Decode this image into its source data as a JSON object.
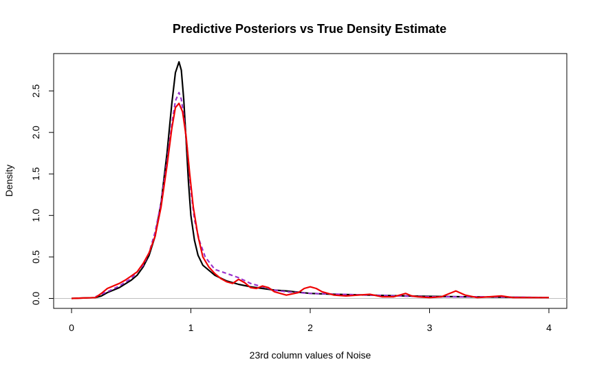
{
  "chart_data": {
    "type": "line",
    "title": "Predictive Posteriors vs True Density Estimate",
    "xlabel": "23rd column values of Noise",
    "ylabel": "Density",
    "xlim": [
      -0.15,
      4.15
    ],
    "ylim": [
      -0.12,
      2.95
    ],
    "xticks": [
      0,
      1,
      2,
      3,
      4
    ],
    "xtick_labels": [
      "0",
      "1",
      "2",
      "3",
      "4"
    ],
    "yticks": [
      0,
      0.5,
      1,
      1.5,
      2,
      2.5
    ],
    "ytick_labels": [
      "0.0",
      "0.5",
      "1.0",
      "1.5",
      "2.0",
      "2.5"
    ],
    "zero_line": true,
    "grid": false,
    "legend": "none",
    "series": [
      {
        "color": "#000000",
        "style": "solid",
        "points": [
          [
            0,
            0
          ],
          [
            0.1,
            0.005
          ],
          [
            0.2,
            0.01
          ],
          [
            0.25,
            0.03
          ],
          [
            0.3,
            0.07
          ],
          [
            0.4,
            0.13
          ],
          [
            0.5,
            0.22
          ],
          [
            0.55,
            0.28
          ],
          [
            0.6,
            0.38
          ],
          [
            0.65,
            0.52
          ],
          [
            0.7,
            0.75
          ],
          [
            0.75,
            1.15
          ],
          [
            0.8,
            1.75
          ],
          [
            0.84,
            2.35
          ],
          [
            0.87,
            2.72
          ],
          [
            0.9,
            2.85
          ],
          [
            0.92,
            2.75
          ],
          [
            0.94,
            2.4
          ],
          [
            0.96,
            1.9
          ],
          [
            0.98,
            1.4
          ],
          [
            1.0,
            1.0
          ],
          [
            1.03,
            0.7
          ],
          [
            1.06,
            0.52
          ],
          [
            1.1,
            0.4
          ],
          [
            1.2,
            0.28
          ],
          [
            1.3,
            0.21
          ],
          [
            1.4,
            0.17
          ],
          [
            1.5,
            0.14
          ],
          [
            1.6,
            0.12
          ],
          [
            1.7,
            0.1
          ],
          [
            1.8,
            0.09
          ],
          [
            2.0,
            0.06
          ],
          [
            2.2,
            0.05
          ],
          [
            2.5,
            0.04
          ],
          [
            2.8,
            0.03
          ],
          [
            3.0,
            0.025
          ],
          [
            3.3,
            0.02
          ],
          [
            3.6,
            0.015
          ],
          [
            4.0,
            0.01
          ]
        ]
      },
      {
        "color": "#9933cc",
        "style": "dashed",
        "points": [
          [
            0.2,
            0.02
          ],
          [
            0.3,
            0.08
          ],
          [
            0.4,
            0.15
          ],
          [
            0.5,
            0.24
          ],
          [
            0.6,
            0.4
          ],
          [
            0.65,
            0.55
          ],
          [
            0.7,
            0.8
          ],
          [
            0.75,
            1.15
          ],
          [
            0.8,
            1.65
          ],
          [
            0.84,
            2.1
          ],
          [
            0.87,
            2.38
          ],
          [
            0.9,
            2.48
          ],
          [
            0.92,
            2.4
          ],
          [
            0.94,
            2.2
          ],
          [
            0.97,
            1.8
          ],
          [
            1.0,
            1.3
          ],
          [
            1.03,
            0.95
          ],
          [
            1.07,
            0.7
          ],
          [
            1.12,
            0.5
          ],
          [
            1.2,
            0.35
          ],
          [
            1.3,
            0.3
          ],
          [
            1.4,
            0.25
          ],
          [
            1.5,
            0.18
          ],
          [
            1.6,
            0.14
          ],
          [
            1.7,
            0.1
          ],
          [
            1.8,
            0.08
          ],
          [
            2.0,
            0.06
          ],
          [
            2.5,
            0.04
          ],
          [
            3.0,
            0.02
          ],
          [
            3.5,
            0.02
          ],
          [
            4.0,
            0.01
          ]
        ]
      },
      {
        "color": "#ee0000",
        "style": "solid",
        "points": [
          [
            0,
            0
          ],
          [
            0.1,
            0.005
          ],
          [
            0.2,
            0.01
          ],
          [
            0.25,
            0.06
          ],
          [
            0.3,
            0.12
          ],
          [
            0.4,
            0.18
          ],
          [
            0.45,
            0.22
          ],
          [
            0.5,
            0.27
          ],
          [
            0.55,
            0.32
          ],
          [
            0.6,
            0.42
          ],
          [
            0.65,
            0.55
          ],
          [
            0.7,
            0.75
          ],
          [
            0.75,
            1.1
          ],
          [
            0.8,
            1.6
          ],
          [
            0.84,
            2.05
          ],
          [
            0.87,
            2.3
          ],
          [
            0.9,
            2.35
          ],
          [
            0.93,
            2.25
          ],
          [
            0.96,
            1.95
          ],
          [
            0.99,
            1.5
          ],
          [
            1.02,
            1.1
          ],
          [
            1.06,
            0.75
          ],
          [
            1.1,
            0.5
          ],
          [
            1.15,
            0.38
          ],
          [
            1.2,
            0.3
          ],
          [
            1.25,
            0.24
          ],
          [
            1.3,
            0.2
          ],
          [
            1.35,
            0.18
          ],
          [
            1.4,
            0.23
          ],
          [
            1.45,
            0.19
          ],
          [
            1.5,
            0.13
          ],
          [
            1.55,
            0.12
          ],
          [
            1.6,
            0.15
          ],
          [
            1.65,
            0.13
          ],
          [
            1.7,
            0.08
          ],
          [
            1.8,
            0.04
          ],
          [
            1.9,
            0.07
          ],
          [
            1.95,
            0.12
          ],
          [
            2.0,
            0.14
          ],
          [
            2.05,
            0.12
          ],
          [
            2.1,
            0.08
          ],
          [
            2.2,
            0.04
          ],
          [
            2.3,
            0.03
          ],
          [
            2.4,
            0.04
          ],
          [
            2.5,
            0.05
          ],
          [
            2.6,
            0.02
          ],
          [
            2.7,
            0.02
          ],
          [
            2.8,
            0.06
          ],
          [
            2.85,
            0.03
          ],
          [
            2.9,
            0.02
          ],
          [
            3.0,
            0.01
          ],
          [
            3.1,
            0.02
          ],
          [
            3.15,
            0.05
          ],
          [
            3.22,
            0.09
          ],
          [
            3.3,
            0.04
          ],
          [
            3.4,
            0.01
          ],
          [
            3.5,
            0.02
          ],
          [
            3.6,
            0.03
          ],
          [
            3.7,
            0.01
          ],
          [
            3.8,
            0.01
          ],
          [
            4.0,
            0.01
          ]
        ]
      }
    ]
  }
}
